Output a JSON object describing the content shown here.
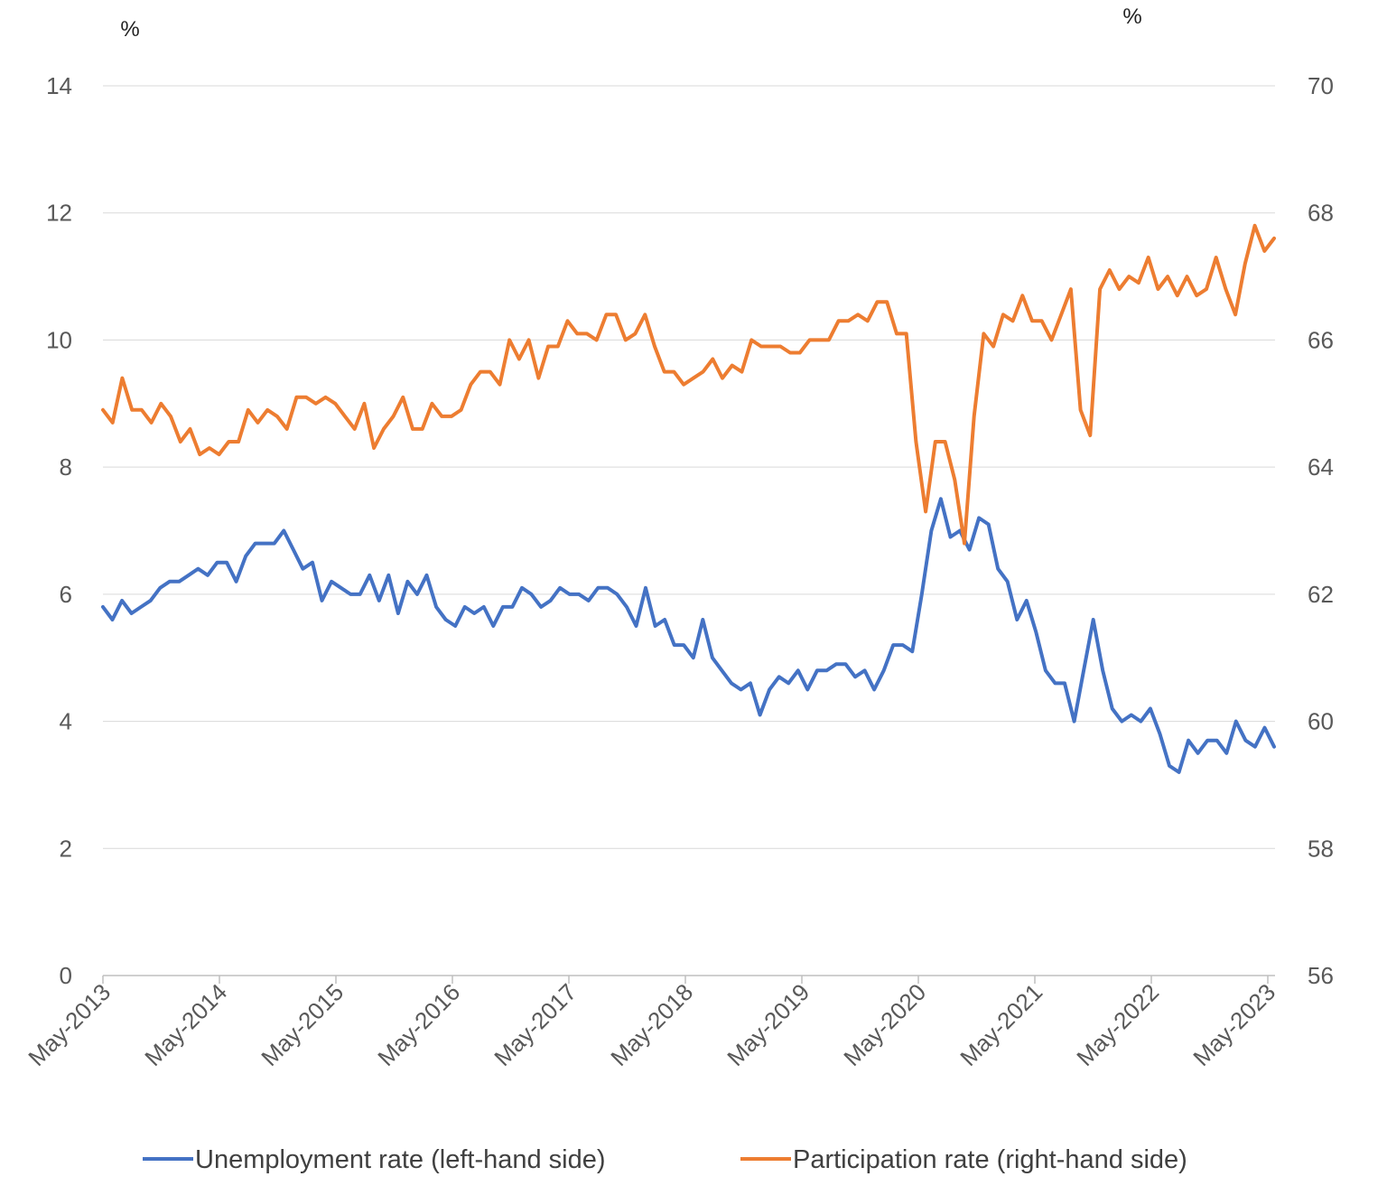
{
  "chart_data": {
    "type": "line",
    "left_axis": {
      "unit_label": "%",
      "ylim": [
        0,
        14
      ],
      "ticks": [
        0,
        2,
        4,
        6,
        8,
        10,
        12,
        14
      ]
    },
    "right_axis": {
      "unit_label": "%",
      "ylim": [
        56,
        70
      ],
      "ticks": [
        56,
        58,
        60,
        62,
        64,
        66,
        68,
        70
      ]
    },
    "x_ticks": [
      "May-2013",
      "May-2014",
      "May-2015",
      "May-2016",
      "May-2017",
      "May-2018",
      "May-2019",
      "May-2020",
      "May-2021",
      "May-2022",
      "May-2023"
    ],
    "x_start": "May-2013",
    "x_end": "May-2023",
    "grid": "horizontal",
    "legend_position": "bottom",
    "series": [
      {
        "name": "Unemployment rate (left-hand side)",
        "axis": "left",
        "color": "#4472C4",
        "values": [
          5.8,
          5.6,
          5.9,
          5.7,
          5.8,
          5.9,
          6.1,
          6.2,
          6.2,
          6.3,
          6.4,
          6.3,
          6.5,
          6.5,
          6.2,
          6.6,
          6.8,
          6.8,
          6.8,
          7.0,
          6.7,
          6.4,
          6.5,
          5.9,
          6.2,
          6.1,
          6.0,
          6.0,
          6.3,
          5.9,
          6.3,
          5.7,
          6.2,
          6.0,
          6.3,
          5.8,
          5.6,
          5.5,
          5.8,
          5.7,
          5.8,
          5.5,
          5.8,
          5.8,
          6.1,
          6.0,
          5.8,
          5.9,
          6.1,
          6.0,
          6.0,
          5.9,
          6.1,
          6.1,
          6.0,
          5.8,
          5.5,
          6.1,
          5.5,
          5.6,
          5.2,
          5.2,
          5.0,
          5.6,
          5.0,
          4.8,
          4.6,
          4.5,
          4.6,
          4.1,
          4.5,
          4.7,
          4.6,
          4.8,
          4.5,
          4.8,
          4.8,
          4.9,
          4.9,
          4.7,
          4.8,
          4.5,
          4.8,
          5.2,
          5.2,
          5.1,
          6.0,
          7.0,
          7.5,
          6.9,
          7.0,
          6.7,
          7.2,
          7.1,
          6.4,
          6.2,
          5.6,
          5.9,
          5.4,
          4.8,
          4.6,
          4.6,
          4.0,
          4.8,
          5.6,
          4.8,
          4.2,
          4.0,
          4.1,
          4.0,
          4.2,
          3.8,
          3.3,
          3.2,
          3.7,
          3.5,
          3.7,
          3.7,
          3.5,
          4.0,
          3.7,
          3.6,
          3.9,
          3.6
        ]
      },
      {
        "name": "Participation rate (right-hand side)",
        "axis": "right",
        "color": "#ED7D31",
        "values": [
          64.9,
          64.7,
          65.4,
          64.9,
          64.9,
          64.7,
          65.0,
          64.8,
          64.4,
          64.6,
          64.2,
          64.3,
          64.2,
          64.4,
          64.4,
          64.9,
          64.7,
          64.9,
          64.8,
          64.6,
          65.1,
          65.1,
          65.0,
          65.1,
          65.0,
          64.8,
          64.6,
          65.0,
          64.3,
          64.6,
          64.8,
          65.1,
          64.6,
          64.6,
          65.0,
          64.8,
          64.8,
          64.9,
          65.3,
          65.5,
          65.5,
          65.3,
          66.0,
          65.7,
          66.0,
          65.4,
          65.9,
          65.9,
          66.3,
          66.1,
          66.1,
          66.0,
          66.4,
          66.4,
          66.0,
          66.1,
          66.4,
          65.9,
          65.5,
          65.5,
          65.3,
          65.4,
          65.5,
          65.7,
          65.4,
          65.6,
          65.5,
          66.0,
          65.9,
          65.9,
          65.9,
          65.8,
          65.8,
          66.0,
          66.0,
          66.0,
          66.3,
          66.3,
          66.4,
          66.3,
          66.6,
          66.6,
          66.1,
          66.1,
          64.4,
          63.3,
          64.4,
          64.4,
          63.8,
          62.8,
          64.8,
          66.1,
          65.9,
          66.4,
          66.3,
          66.7,
          66.3,
          66.3,
          66.0,
          66.4,
          66.8,
          64.9,
          64.5,
          66.8,
          67.1,
          66.8,
          67.0,
          66.9,
          67.3,
          66.8,
          67.0,
          66.7,
          67.0,
          66.7,
          66.8,
          67.3,
          66.8,
          66.4,
          67.2,
          67.8,
          67.4,
          67.6
        ]
      }
    ]
  }
}
